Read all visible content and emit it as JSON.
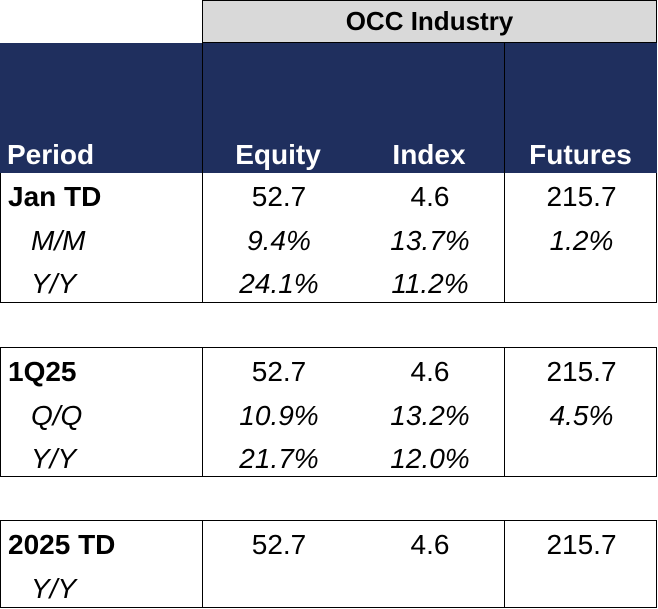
{
  "header": {
    "group_title": "OCC Industry",
    "columns": [
      "Period",
      "Equity",
      "Index",
      "Futures"
    ]
  },
  "colors": {
    "header_bg": "#1f2f5e",
    "group_bg": "#d9d9d9"
  },
  "blocks": [
    {
      "main": {
        "label": "Jan TD",
        "equity": "52.7",
        "index": "4.6",
        "futures": "215.7"
      },
      "sub": [
        {
          "label": "M/M",
          "equity": "9.4%",
          "index": "13.7%",
          "futures": "1.2%"
        },
        {
          "label": "Y/Y",
          "equity": "24.1%",
          "index": "11.2%",
          "futures": ""
        }
      ]
    },
    {
      "main": {
        "label": "1Q25",
        "equity": "52.7",
        "index": "4.6",
        "futures": "215.7"
      },
      "sub": [
        {
          "label": "Q/Q",
          "equity": "10.9%",
          "index": "13.2%",
          "futures": "4.5%"
        },
        {
          "label": "Y/Y",
          "equity": "21.7%",
          "index": "12.0%",
          "futures": ""
        }
      ]
    },
    {
      "main": {
        "label": "2025 TD",
        "equity": "52.7",
        "index": "4.6",
        "futures": "215.7"
      },
      "sub": [
        {
          "label": "Y/Y",
          "equity": "",
          "index": "",
          "futures": ""
        }
      ]
    }
  ]
}
